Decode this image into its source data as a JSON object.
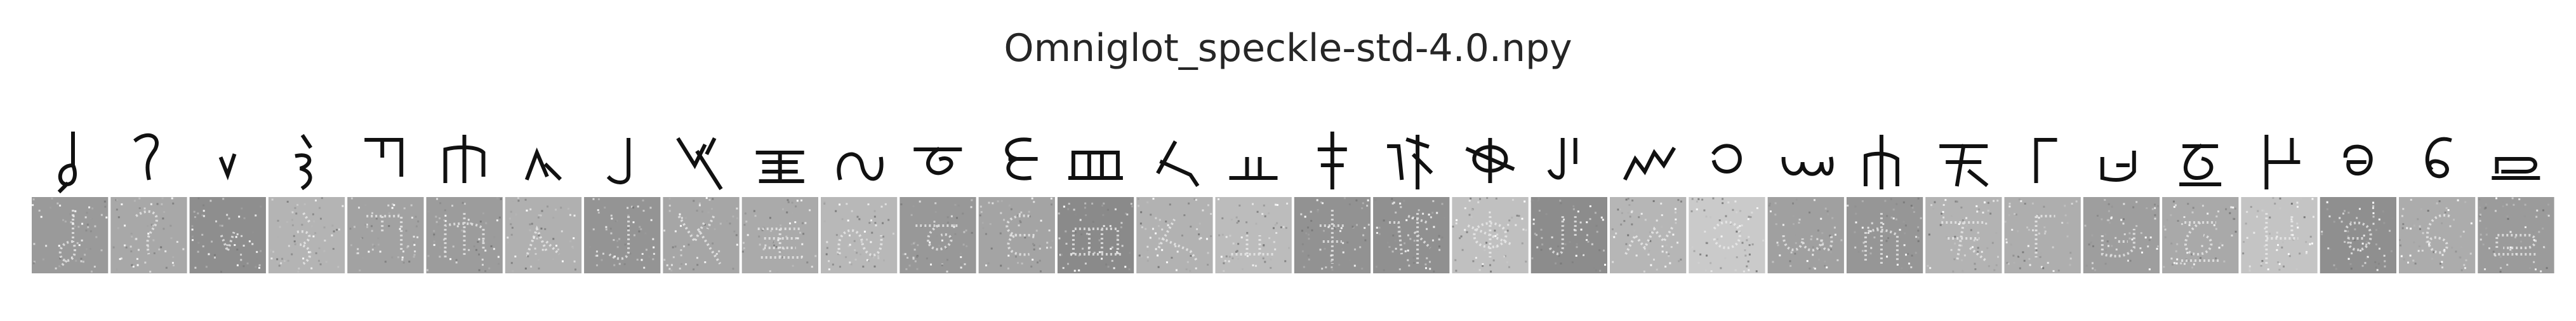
{
  "figure": {
    "title": "Omniglot_speckle-std-4.0.npy",
    "rows": [
      "clean",
      "speckle-noisy"
    ],
    "sample_count": 32,
    "noisy_backgrounds": [
      "#9a9a9a",
      "#a8a8a8",
      "#8e8e8e",
      "#b4b4b4",
      "#a2a2a2",
      "#9c9c9c",
      "#b0b0b0",
      "#949494",
      "#a6a6a6",
      "#aaaaaa",
      "#b8b8b8",
      "#989898",
      "#a4a4a4",
      "#8a8a8a",
      "#b2b2b2",
      "#bcbcbc",
      "#929292",
      "#909090",
      "#c0c0c0",
      "#8c8c8c",
      "#b6b6b6",
      "#cacaca",
      "#a0a0a0",
      "#969696",
      "#b3b3b3",
      "#aeaeae",
      "#9e9e9e",
      "#a9a9a9",
      "#c4c4c4",
      "#8f8f8f",
      "#acacac",
      "#9b9b9b"
    ]
  }
}
